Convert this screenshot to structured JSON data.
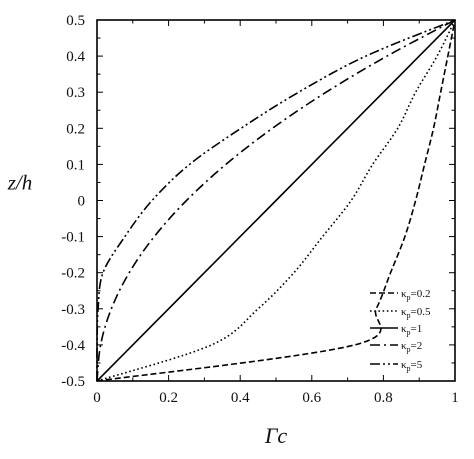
{
  "chart_data": {
    "type": "line",
    "xlabel": "Γc",
    "ylabel": "z/h",
    "xlim": [
      0,
      1
    ],
    "ylim": [
      -0.5,
      0.5
    ],
    "x_ticks": [
      0,
      0.2,
      0.4,
      0.6,
      0.8,
      1
    ],
    "x_tick_labels": [
      "0",
      "0.2",
      "0.4",
      "0.6",
      "0.8",
      "1"
    ],
    "y_ticks": [
      -0.5,
      -0.4,
      -0.3,
      -0.2,
      -0.1,
      0,
      0.1,
      0.2,
      0.3,
      0.4,
      0.5
    ],
    "y_tick_labels": [
      "-0.5",
      "-0.4",
      "-0.3",
      "-0.2",
      "-0.1",
      "0",
      "0.1",
      "0.2",
      "0.3",
      "0.4",
      "0.5"
    ],
    "grid": false,
    "legend_position": "bottom-right",
    "z": [
      -0.5,
      -0.4,
      -0.3,
      -0.2,
      -0.1,
      0,
      0.1,
      0.2,
      0.3,
      0.4,
      0.5
    ],
    "series": [
      {
        "name": "κp=0.2",
        "legend_base": "κ",
        "legend_sub": "p",
        "legend_value": "=0.2",
        "style": "short-dash",
        "x": [
          0,
          0.72,
          0.78,
          0.82,
          0.86,
          0.89,
          0.915,
          0.94,
          0.96,
          0.98,
          1
        ]
      },
      {
        "name": "κp=0.5",
        "legend_base": "κ",
        "legend_sub": "p",
        "legend_value": "=0.5",
        "style": "dotted",
        "x": [
          0,
          0.32,
          0.45,
          0.55,
          0.63,
          0.71,
          0.77,
          0.84,
          0.89,
          0.95,
          1
        ]
      },
      {
        "name": "κp=1",
        "legend_base": "κ",
        "legend_sub": "p",
        "legend_value": "=1",
        "style": "solid",
        "x": [
          0,
          0.1,
          0.2,
          0.3,
          0.4,
          0.5,
          0.6,
          0.7,
          0.8,
          0.9,
          1
        ]
      },
      {
        "name": "κp=2",
        "legend_base": "κ",
        "legend_sub": "p",
        "legend_value": "=2",
        "style": "dash-dot",
        "x": [
          0,
          0.01,
          0.04,
          0.09,
          0.16,
          0.25,
          0.36,
          0.49,
          0.64,
          0.81,
          1
        ]
      },
      {
        "name": "κp=5",
        "legend_base": "κ",
        "legend_sub": "p",
        "legend_value": "=5",
        "style": "dash-dot-dot",
        "x": [
          0,
          0.0001,
          0.003,
          0.0168,
          0.0778,
          0.1538,
          0.2586,
          0.4023,
          0.5633,
          0.7509,
          1
        ]
      }
    ]
  }
}
